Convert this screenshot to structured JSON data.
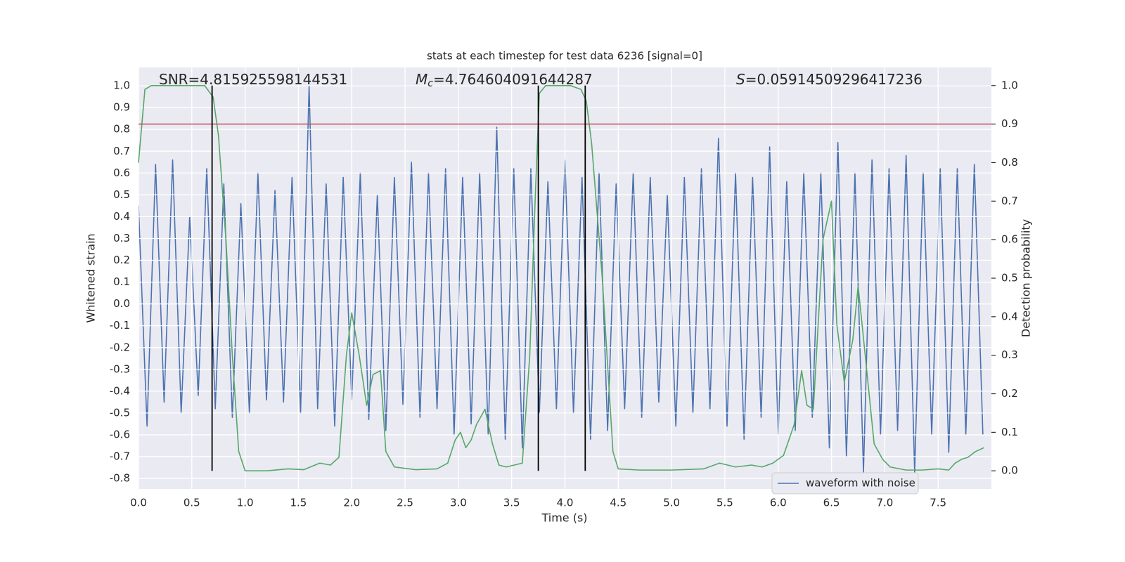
{
  "chart_data": {
    "type": "line",
    "title": "stats at each timestep for test data 6236 [signal=0]",
    "x_label": "Time (s)",
    "y_label": "Whitened strain",
    "y2_label": "Detection probability",
    "annotations": [
      {
        "text": "SNR=4.815925598144531"
      },
      {
        "symbol": "M",
        "subscript": "c",
        "text": "=4.764604091644287"
      },
      {
        "symbol": "S",
        "text": "=0.05914509296417236"
      }
    ],
    "xlim": [
      0,
      8
    ],
    "ylim": [
      -0.848,
      1.084
    ],
    "y2lim": [
      -0.047,
      1.047
    ],
    "xticks": [
      {
        "value": 0,
        "label": "0.0"
      },
      0.5,
      {
        "value": 1,
        "label": "1.0"
      },
      1.5,
      {
        "value": 2,
        "label": "2.0"
      },
      2.5,
      {
        "value": 3,
        "label": "3.0"
      },
      3.5,
      {
        "value": 4,
        "label": "4.0"
      },
      4.5,
      {
        "value": 5,
        "label": "5.0"
      },
      5.5,
      {
        "value": 6,
        "label": "6.0"
      },
      6.5,
      {
        "value": 7,
        "label": "7.0"
      },
      7.5
    ],
    "yticks": [
      -0.8,
      -0.7,
      -0.6,
      -0.5,
      -0.4,
      -0.3,
      -0.2,
      -0.1,
      {
        "value": 0,
        "label": "0.0"
      },
      0.1,
      0.2,
      0.3,
      0.4,
      0.5,
      0.6,
      0.7,
      0.8,
      0.9,
      {
        "value": 1,
        "label": "1.0"
      }
    ],
    "y2ticks": [
      {
        "value": 0,
        "label": "0.0"
      },
      0.1,
      0.2,
      0.3,
      0.4,
      0.5,
      0.6,
      0.7,
      0.8,
      0.9,
      {
        "value": 1,
        "label": "1.0"
      }
    ],
    "grid": true,
    "legend": "lower right",
    "threshold": 0.9,
    "threshold_color": "#c44e52",
    "vlines": [
      0.69,
      3.75,
      4.19
    ],
    "vline_span": [
      0,
      1
    ],
    "vline_color": "#000000",
    "series": [
      {
        "name": "waveform with noise",
        "color": "#4c72b0",
        "x": [
          0,
          0.08,
          0.16,
          0.24,
          0.32,
          0.4,
          0.48,
          0.56,
          0.64,
          0.72,
          0.8,
          0.88,
          0.96,
          1.04,
          1.12,
          1.2,
          1.28,
          1.36,
          1.44,
          1.52,
          1.6,
          1.68,
          1.76,
          1.84,
          1.92,
          2,
          2.08,
          2.16,
          2.24,
          2.32,
          2.4,
          2.48,
          2.56,
          2.64,
          2.72,
          2.8,
          2.88,
          2.96,
          3.04,
          3.12,
          3.2,
          3.28,
          3.36,
          3.44,
          3.52,
          3.6,
          3.68,
          3.76,
          3.84,
          3.92,
          4,
          4.08,
          4.16,
          4.24,
          4.32,
          4.4,
          4.48,
          4.56,
          4.64,
          4.72,
          4.8,
          4.88,
          4.96,
          5.04,
          5.12,
          5.2,
          5.28,
          5.36,
          5.44,
          5.52,
          5.6,
          5.68,
          5.76,
          5.84,
          5.92,
          6,
          6.08,
          6.16,
          6.24,
          6.32,
          6.4,
          6.48,
          6.56,
          6.64,
          6.72,
          6.8,
          6.88,
          6.96,
          7.04,
          7.12,
          7.2,
          7.28,
          7.36,
          7.44,
          7.52,
          7.6,
          7.68,
          7.76,
          7.84,
          7.92
        ],
        "values": [
          0.45,
          -0.56,
          0.64,
          -0.45,
          0.66,
          -0.5,
          0.4,
          -0.42,
          0.62,
          -0.48,
          0.55,
          -0.52,
          0.46,
          -0.5,
          0.6,
          -0.44,
          0.52,
          -0.45,
          0.58,
          -0.5,
          1.0,
          -0.48,
          0.55,
          -0.56,
          0.58,
          -0.44,
          0.6,
          -0.53,
          0.5,
          -0.58,
          0.58,
          -0.46,
          0.65,
          -0.52,
          0.6,
          -0.48,
          0.62,
          -0.6,
          0.58,
          -0.55,
          0.6,
          -0.6,
          0.81,
          -0.62,
          0.62,
          -0.66,
          0.62,
          -0.5,
          0.56,
          -0.48,
          0.66,
          -0.5,
          0.58,
          -0.62,
          0.6,
          -0.58,
          0.55,
          -0.48,
          0.6,
          -0.52,
          0.58,
          -0.45,
          0.5,
          -0.56,
          0.58,
          -0.5,
          0.62,
          -0.48,
          0.76,
          -0.56,
          0.6,
          -0.62,
          0.58,
          -0.52,
          0.72,
          -0.6,
          0.56,
          -0.58,
          0.6,
          -0.52,
          0.6,
          -0.66,
          0.74,
          -0.7,
          0.6,
          -0.77,
          0.66,
          -0.6,
          0.62,
          -0.58,
          0.68,
          -0.77,
          0.6,
          -0.6,
          0.62,
          -0.68,
          0.62,
          -0.6,
          0.64,
          -0.6
        ]
      },
      {
        "color": "#55a868",
        "axis": "y2",
        "x": [
          0,
          0.06,
          0.12,
          0.3,
          0.5,
          0.62,
          0.7,
          0.75,
          0.82,
          0.88,
          0.94,
          1.0,
          1.2,
          1.4,
          1.55,
          1.7,
          1.8,
          1.88,
          1.95,
          2.0,
          2.07,
          2.14,
          2.2,
          2.27,
          2.32,
          2.4,
          2.6,
          2.8,
          2.9,
          2.97,
          3.02,
          3.07,
          3.12,
          3.17,
          3.25,
          3.32,
          3.38,
          3.45,
          3.6,
          3.67,
          3.72,
          3.76,
          3.82,
          3.9,
          4.05,
          4.15,
          4.2,
          4.25,
          4.35,
          4.45,
          4.5,
          4.7,
          5.0,
          5.3,
          5.45,
          5.6,
          5.75,
          5.85,
          5.95,
          6.05,
          6.15,
          6.22,
          6.27,
          6.33,
          6.42,
          6.5,
          6.55,
          6.62,
          6.7,
          6.75,
          6.82,
          6.9,
          6.98,
          7.05,
          7.2,
          7.35,
          7.5,
          7.6,
          7.66,
          7.72,
          7.78,
          7.85,
          7.93
        ],
        "values": [
          0.8,
          0.99,
          1.0,
          1.0,
          1.0,
          1.0,
          0.97,
          0.87,
          0.6,
          0.3,
          0.05,
          0.0,
          0.0,
          0.005,
          0.003,
          0.02,
          0.015,
          0.035,
          0.3,
          0.41,
          0.3,
          0.17,
          0.25,
          0.26,
          0.05,
          0.01,
          0.003,
          0.005,
          0.02,
          0.08,
          0.1,
          0.06,
          0.08,
          0.12,
          0.16,
          0.07,
          0.015,
          0.01,
          0.02,
          0.3,
          0.7,
          0.98,
          1.0,
          1.0,
          1.0,
          0.99,
          0.96,
          0.85,
          0.5,
          0.05,
          0.005,
          0.002,
          0.002,
          0.005,
          0.02,
          0.01,
          0.015,
          0.01,
          0.02,
          0.04,
          0.12,
          0.26,
          0.17,
          0.16,
          0.6,
          0.7,
          0.38,
          0.23,
          0.34,
          0.48,
          0.29,
          0.07,
          0.03,
          0.01,
          0.002,
          0.002,
          0.005,
          0.002,
          0.02,
          0.03,
          0.035,
          0.05,
          0.06
        ]
      }
    ]
  }
}
